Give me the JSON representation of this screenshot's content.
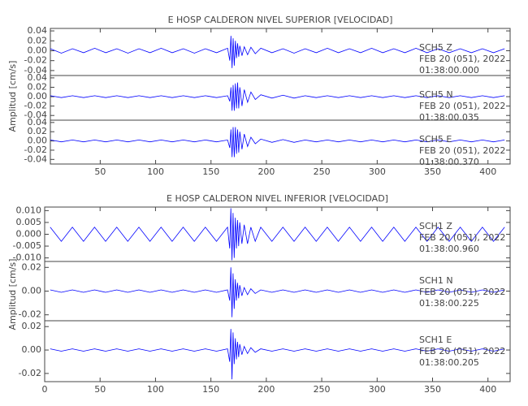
{
  "chart_data": [
    {
      "type": "line",
      "title": "E HOSP CALDERON NIVEL SUPERIOR [VELOCIDAD]",
      "y_label": "Amplitud [cm/s]",
      "xlim": [
        5,
        420
      ],
      "xticks": [
        50,
        100,
        150,
        200,
        250,
        300,
        350,
        400
      ],
      "x": [
        5,
        15,
        25,
        35,
        45,
        55,
        65,
        75,
        85,
        95,
        105,
        115,
        125,
        135,
        145,
        155,
        165,
        167,
        168,
        169,
        170,
        171,
        172,
        173,
        174,
        175,
        176,
        178,
        180,
        183,
        186,
        190,
        195,
        205,
        215,
        225,
        235,
        245,
        255,
        265,
        275,
        285,
        295,
        305,
        315,
        325,
        335,
        345,
        355,
        365,
        375,
        385,
        395,
        405,
        415
      ],
      "panels": [
        {
          "station": "SCH5   Z",
          "date": "FEB 20 (051), 2022",
          "time": "01:38:00.000",
          "ylim": [
            -0.05,
            0.045
          ],
          "yticks": [
            -0.04,
            -0.02,
            {
              "value": 0,
              "label": "0.00"
            },
            0.02,
            0.04
          ],
          "series": [
            {
              "color": "#0000ff",
              "values": [
                0.004,
                -0.005,
                0.004,
                -0.004,
                0.005,
                -0.004,
                0.004,
                -0.005,
                0.004,
                -0.004,
                0.005,
                -0.004,
                0.004,
                -0.005,
                0.004,
                -0.004,
                0.005,
                -0.02,
                0.03,
                -0.035,
                0.025,
                -0.03,
                0.02,
                -0.015,
                0.015,
                -0.012,
                0.01,
                -0.01,
                0.008,
                -0.008,
                0.007,
                -0.006,
                0.005,
                -0.004,
                0.004,
                -0.005,
                0.004,
                -0.004,
                0.005,
                -0.004,
                0.004,
                -0.004,
                0.005,
                -0.004,
                0.004,
                -0.004,
                0.005,
                -0.004,
                0.004,
                -0.004,
                0.004,
                -0.004,
                0.004,
                -0.004,
                0.004
              ]
            }
          ]
        },
        {
          "station": "SCH5   N",
          "date": "FEB 20 (051), 2022",
          "time": "01:38:00.035",
          "ylim": [
            -0.05,
            0.045
          ],
          "yticks": [
            -0.04,
            -0.02,
            {
              "value": 0,
              "label": "0.00"
            },
            0.02,
            0.04
          ],
          "series": [
            {
              "color": "#0000ff",
              "values": [
                0.002,
                -0.002,
                0.002,
                -0.002,
                0.002,
                -0.002,
                0.002,
                -0.002,
                0.002,
                -0.002,
                0.002,
                -0.002,
                0.002,
                -0.002,
                0.002,
                -0.002,
                0.002,
                -0.01,
                0.02,
                -0.03,
                0.025,
                -0.03,
                0.028,
                -0.025,
                0.03,
                -0.025,
                0.02,
                -0.02,
                0.015,
                -0.012,
                0.01,
                -0.006,
                0.004,
                -0.003,
                0.003,
                -0.003,
                0.002,
                -0.002,
                0.002,
                -0.002,
                0.002,
                -0.002,
                0.002,
                -0.002,
                0.002,
                -0.002,
                0.002,
                -0.002,
                0.002,
                -0.002,
                0.002,
                -0.002,
                0.002,
                -0.002,
                0.002
              ]
            }
          ]
        },
        {
          "station": "SCH5   E",
          "date": "FEB 20 (051), 2022",
          "time": "01:38:00.370",
          "ylim": [
            -0.05,
            0.045
          ],
          "yticks": [
            -0.04,
            -0.02,
            {
              "value": 0,
              "label": "0.00"
            },
            0.02,
            0.04
          ],
          "series": [
            {
              "color": "#0000ff",
              "values": [
                0.002,
                -0.002,
                0.002,
                -0.002,
                0.002,
                -0.002,
                0.002,
                -0.002,
                0.002,
                -0.002,
                0.002,
                -0.002,
                0.002,
                -0.002,
                0.002,
                -0.002,
                0.002,
                -0.015,
                0.025,
                -0.035,
                0.03,
                -0.035,
                0.03,
                -0.028,
                0.025,
                -0.025,
                0.02,
                -0.018,
                0.015,
                -0.012,
                0.008,
                -0.006,
                0.004,
                -0.003,
                0.003,
                -0.003,
                0.002,
                -0.002,
                0.002,
                -0.002,
                0.002,
                -0.002,
                0.002,
                -0.002,
                0.002,
                -0.002,
                0.002,
                -0.002,
                0.002,
                -0.002,
                0.002,
                -0.002,
                0.002,
                -0.002,
                0.002
              ]
            }
          ]
        }
      ]
    },
    {
      "type": "line",
      "title": "E HOSP CALDERON NIVEL INFERIOR [VELOCIDAD]",
      "y_label": "Amplitud [cm/s]",
      "xlim": [
        0,
        420
      ],
      "xticks": [
        0,
        50,
        100,
        150,
        200,
        250,
        300,
        350,
        400
      ],
      "x": [
        5,
        15,
        25,
        35,
        45,
        55,
        65,
        75,
        85,
        95,
        105,
        115,
        125,
        135,
        145,
        155,
        165,
        167,
        168,
        169,
        170,
        171,
        172,
        173,
        174,
        175,
        176,
        178,
        180,
        183,
        186,
        190,
        195,
        205,
        215,
        225,
        235,
        245,
        255,
        265,
        275,
        285,
        295,
        305,
        315,
        325,
        335,
        345,
        355,
        365,
        375,
        385,
        395,
        405,
        415
      ],
      "panels": [
        {
          "station": "SCH1   Z",
          "date": "FEB 20 (051), 2022",
          "time": "01:38:00.960",
          "ylim": [
            -0.0115,
            0.0115
          ],
          "yticks": [
            {
              "value": -0.01,
              "label": "-0.010"
            },
            -0.005,
            {
              "value": 0,
              "label": "0.000"
            },
            0.005,
            {
              "value": 0.01,
              "label": "0.010"
            }
          ],
          "series": [
            {
              "color": "#0000ff",
              "values": [
                0.003,
                -0.003,
                0.003,
                -0.003,
                0.003,
                -0.003,
                0.003,
                -0.003,
                0.003,
                -0.003,
                0.003,
                -0.003,
                0.003,
                -0.003,
                0.003,
                -0.003,
                0.003,
                -0.006,
                0.011,
                -0.011,
                0.009,
                -0.01,
                0.007,
                -0.006,
                0.006,
                -0.005,
                0.005,
                -0.004,
                0.004,
                -0.004,
                0.003,
                -0.003,
                0.003,
                -0.003,
                0.003,
                -0.003,
                0.003,
                -0.003,
                0.003,
                -0.003,
                0.003,
                -0.003,
                0.003,
                -0.003,
                0.003,
                -0.003,
                0.003,
                -0.003,
                0.003,
                -0.003,
                0.003,
                -0.003,
                0.003,
                -0.003,
                0.003
              ]
            }
          ]
        },
        {
          "station": "SCH1   N",
          "date": "FEB 20 (051), 2022",
          "time": "01:38:00.225",
          "ylim": [
            -0.025,
            0.025
          ],
          "yticks": [
            -0.02,
            {
              "value": 0,
              "label": "0.00"
            },
            0.02
          ],
          "series": [
            {
              "color": "#0000ff",
              "values": [
                0.001,
                -0.001,
                0.001,
                -0.001,
                0.001,
                -0.001,
                0.001,
                -0.001,
                0.001,
                -0.001,
                0.001,
                -0.001,
                0.001,
                -0.001,
                0.001,
                -0.001,
                0.001,
                -0.008,
                0.02,
                -0.022,
                0.015,
                -0.015,
                0.01,
                -0.008,
                0.007,
                -0.006,
                0.005,
                -0.004,
                0.003,
                -0.003,
                0.002,
                -0.002,
                0.001,
                -0.001,
                0.001,
                -0.001,
                0.001,
                -0.001,
                0.001,
                -0.001,
                0.001,
                -0.001,
                0.001,
                -0.001,
                0.001,
                -0.001,
                0.001,
                -0.001,
                0.001,
                -0.001,
                0.001,
                -0.001,
                0.001,
                -0.001,
                0.001
              ]
            }
          ]
        },
        {
          "station": "SCH1   E",
          "date": "FEB 20 (051), 2022",
          "time": "01:38:00.205",
          "ylim": [
            -0.027,
            0.025
          ],
          "yticks": [
            -0.02,
            {
              "value": 0,
              "label": "0.00"
            },
            0.02
          ],
          "series": [
            {
              "color": "#0000ff",
              "values": [
                0.001,
                -0.001,
                0.001,
                -0.001,
                0.001,
                -0.001,
                0.001,
                -0.001,
                0.001,
                -0.001,
                0.001,
                -0.001,
                0.001,
                -0.001,
                0.001,
                -0.001,
                0.001,
                -0.01,
                0.018,
                -0.025,
                0.015,
                -0.012,
                0.01,
                -0.008,
                0.007,
                -0.006,
                0.005,
                -0.004,
                0.003,
                -0.003,
                0.002,
                -0.002,
                0.001,
                -0.001,
                0.001,
                -0.001,
                0.001,
                -0.001,
                0.001,
                -0.001,
                0.001,
                -0.001,
                0.001,
                -0.001,
                0.001,
                -0.001,
                0.001,
                -0.001,
                0.001,
                -0.001,
                0.001,
                -0.001,
                0.001,
                -0.001,
                0.001
              ]
            }
          ]
        }
      ]
    }
  ]
}
